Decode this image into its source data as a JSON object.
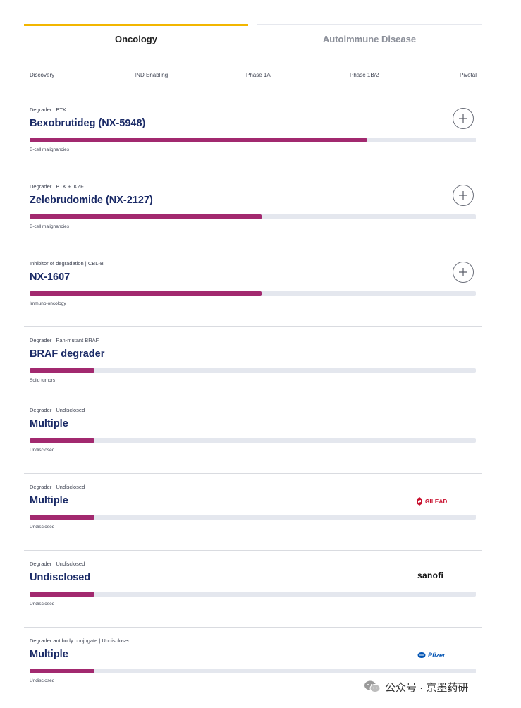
{
  "tabs": [
    {
      "label": "Oncology",
      "active": true
    },
    {
      "label": "Autoimmune Disease",
      "active": false
    }
  ],
  "phases": [
    "Discovery",
    "IND Enabling",
    "Phase 1A",
    "Phase 1B/2",
    "Pivotal"
  ],
  "colors": {
    "accent": "#f2b600",
    "progress": "#a2296f",
    "track": "#e4e7ee",
    "title": "#1a2a66"
  },
  "programs": [
    {
      "category": "Degrader | BTK",
      "name": "Bexobrutideg (NX-5948)",
      "indication": "B-cell malignancies",
      "progress_pct": 75.5,
      "expand_icon": "plus-circle-icon"
    },
    {
      "category": "Degrader | BTK + IKZF",
      "name": "Zelebrudomide (NX-2127)",
      "indication": "B-cell malignancies",
      "progress_pct": 52,
      "expand_icon": "plus-circle-icon"
    },
    {
      "category": "Inhibitor of degradation | CBL-B",
      "name": "NX-1607",
      "indication": "Immuno-oncology",
      "progress_pct": 52,
      "expand_icon": "plus-circle-icon"
    },
    {
      "category": "Degrader | Pan-mutant BRAF",
      "name": "BRAF degrader",
      "indication": "Solid tumors",
      "progress_pct": 14.5
    },
    {
      "category": "Degrader | Undisclosed",
      "name": "Multiple",
      "indication": "Undisclosed",
      "progress_pct": 14.5
    },
    {
      "category": "Degrader | Undisclosed",
      "name": "Multiple",
      "indication": "Undisclosed",
      "progress_pct": 14.5,
      "partner": "GILEAD",
      "partner_icon": "gilead-logo-icon"
    },
    {
      "category": "Degrader | Undisclosed",
      "name": "Undisclosed",
      "indication": "Undisclosed",
      "progress_pct": 14.5,
      "partner": "sanofi",
      "partner_icon": "sanofi-logo-icon"
    },
    {
      "category": "Degrader antibody conjugate | Undisclosed",
      "name": "Multiple",
      "indication": "Undisclosed",
      "progress_pct": 14.5,
      "partner": "Pfizer",
      "partner_icon": "pfizer-logo-icon"
    }
  ],
  "watermark": {
    "text": "公众号 · 京墨药研",
    "icon": "wechat-icon"
  }
}
